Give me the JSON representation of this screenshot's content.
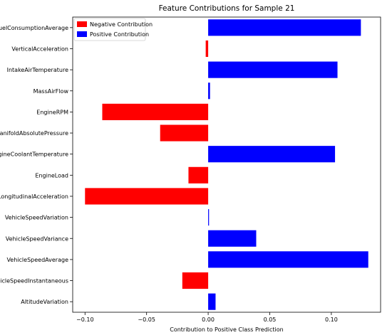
{
  "chart_data": {
    "type": "bar",
    "orientation": "horizontal",
    "title": "Feature Contributions for Sample 21",
    "xlabel": "Contribution to Positive Class Prediction",
    "ylabel": "",
    "xlim": [
      -0.11,
      0.14
    ],
    "xticks": [
      -0.1,
      -0.05,
      0.0,
      0.05,
      0.1
    ],
    "xtick_labels": [
      "−0.10",
      "−0.05",
      "0.00",
      "0.05",
      "0.10"
    ],
    "grid": false,
    "legend_position": "top-left",
    "legend": [
      {
        "label": "Negative Contribution",
        "color": "#ff0000"
      },
      {
        "label": "Positive Contribution",
        "color": "#0000ff"
      }
    ],
    "colors": {
      "negative": "#ff0000",
      "positive": "#0000ff"
    },
    "categories": [
      "FuelConsumptionAverage",
      "VerticalAcceleration",
      "IntakeAirTemperature",
      "MassAirFlow",
      "EngineRPM",
      "ManifoldAbsolutePressure",
      "EngineCoolantTemperature",
      "EngineLoad",
      "LongitudinalAcceleration",
      "VehicleSpeedVariation",
      "VehicleSpeedVariance",
      "VehicleSpeedAverage",
      "VehicleSpeedInstantaneous",
      "AltitudeVariation"
    ],
    "values": [
      0.124,
      -0.002,
      0.105,
      0.0015,
      -0.086,
      -0.039,
      0.103,
      -0.016,
      -0.1,
      0.0005,
      0.039,
      0.13,
      -0.021,
      0.006
    ]
  }
}
